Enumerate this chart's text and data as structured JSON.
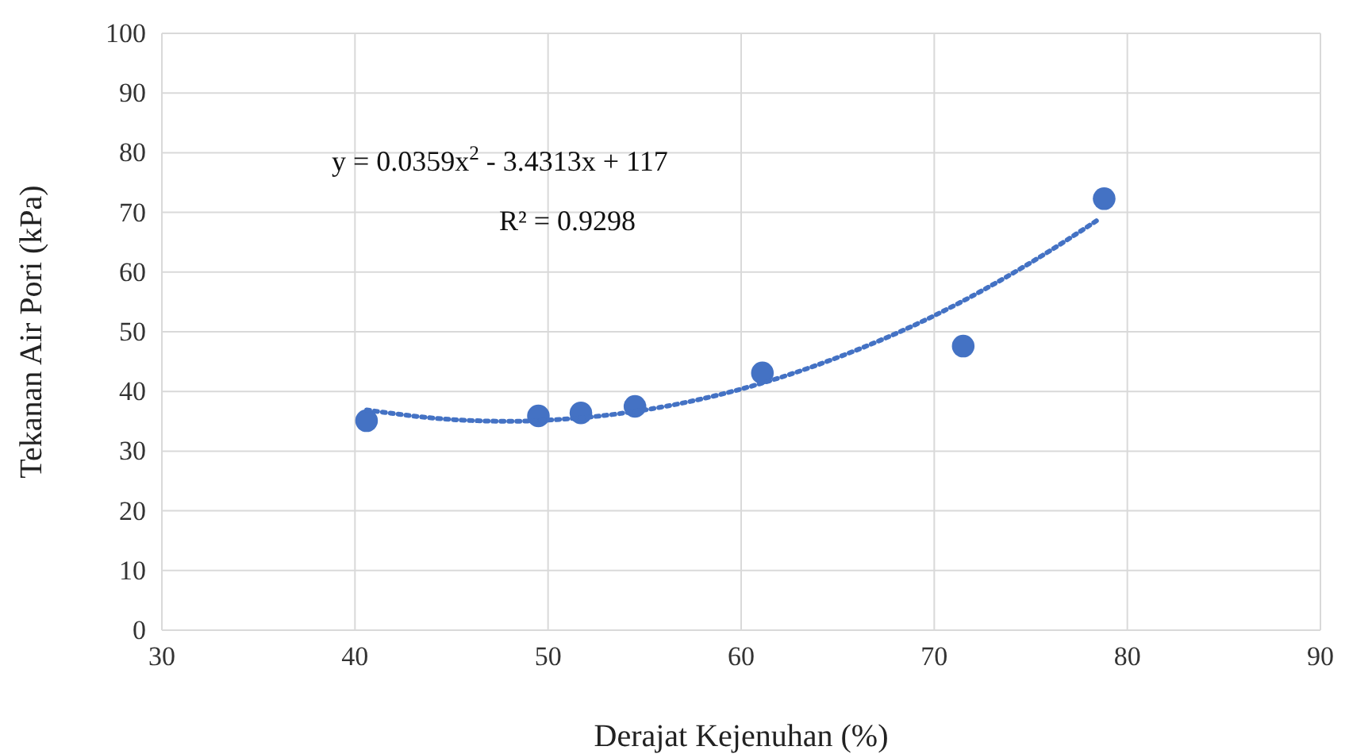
{
  "chart_data": {
    "type": "scatter",
    "xlabel": "Derajat Kejenuhan (%)",
    "ylabel": "Tekanan Air Pori (kPa)",
    "xlim": [
      30,
      90
    ],
    "xticks": [
      30,
      40,
      50,
      60,
      70,
      80,
      90
    ],
    "ylim": [
      0,
      100
    ],
    "yticks": [
      0,
      10,
      20,
      30,
      40,
      50,
      60,
      70,
      80,
      90,
      100
    ],
    "grid": true,
    "annotations": [
      "y = 0.0359x$^{2}$ - 3.4313x + 117",
      "R² = 0.9298"
    ],
    "series": [
      {
        "color": "#4472c4",
        "marker": "circle",
        "x": [
          40.6,
          49.5,
          51.7,
          54.5,
          61.1,
          71.5,
          78.8
        ],
        "values": [
          35.1,
          35.9,
          36.4,
          37.5,
          43.1,
          47.6,
          72.3
        ]
      },
      {
        "type": "line",
        "color": "#4472c4",
        "line_style": "dotted",
        "x": [
          40.6,
          45,
          48,
          50,
          55,
          60,
          65,
          70,
          75,
          78.5
        ],
        "values": [
          36.9,
          35.3,
          35.0,
          35.2,
          36.9,
          40.4,
          45.7,
          52.7,
          61.6,
          68.8
        ]
      }
    ]
  }
}
